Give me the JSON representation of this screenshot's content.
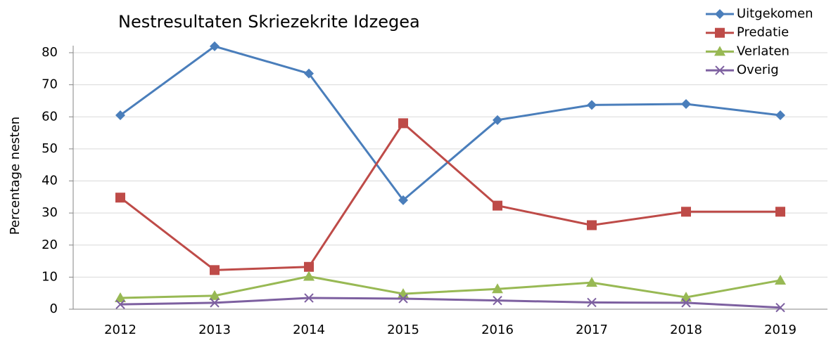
{
  "chart_data": {
    "type": "line",
    "title": "Nestresultaten Skriezekrite Idzegea",
    "y_label": "Percentage nesten",
    "categories": [
      "2012",
      "2013",
      "2014",
      "2015",
      "2016",
      "2017",
      "2018",
      "2019"
    ],
    "series": [
      {
        "name": "Uitgekomen",
        "color": "#4a7ebb",
        "marker": "diamond",
        "values": [
          60.5,
          82,
          73.5,
          34,
          59,
          63.7,
          64,
          60.5
        ]
      },
      {
        "name": "Predatie",
        "color": "#be4b48",
        "marker": "square",
        "values": [
          34.8,
          12.2,
          13.2,
          58,
          32.3,
          26.2,
          30.4,
          30.4
        ]
      },
      {
        "name": "Verlaten",
        "color": "#98b954",
        "marker": "triangle",
        "values": [
          3.5,
          4.2,
          10.2,
          4.8,
          6.3,
          8.3,
          3.7,
          9.0
        ]
      },
      {
        "name": "Overig",
        "color": "#7d60a0",
        "marker": "x",
        "values": [
          1.5,
          2,
          3.5,
          3.3,
          2.7,
          2.1,
          2.0,
          0.5
        ]
      }
    ],
    "ylim": [
      0,
      80
    ],
    "yticks": [
      0,
      10,
      20,
      30,
      40,
      50,
      60,
      70,
      80
    ],
    "grid": true,
    "legend": "top-right"
  }
}
